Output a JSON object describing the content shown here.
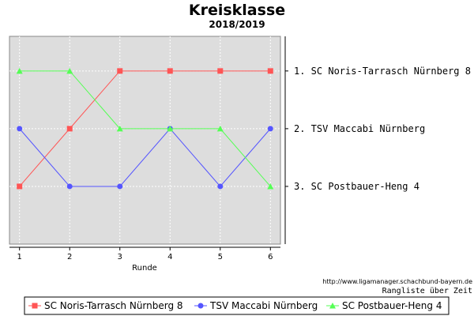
{
  "chart_data": {
    "type": "line",
    "title": "Kreisklasse",
    "subtitle": "2018/2019",
    "xlabel": "Runde",
    "ylabel": "",
    "x": [
      1,
      2,
      3,
      4,
      5,
      6
    ],
    "ylim": [
      4,
      0.4
    ],
    "grid": true,
    "plot_background": "#dddddd",
    "rank_labels": [
      "1. SC Noris-Tarrasch Nürnberg 8",
      "2. TSV Maccabi Nürnberg",
      "3. SC Postbauer-Heng 4"
    ],
    "series": [
      {
        "name": "SC Noris-Tarrasch Nürnberg 8",
        "values": [
          3,
          2,
          1,
          1,
          1,
          1
        ],
        "color": "#ff5555",
        "marker": "square"
      },
      {
        "name": "TSV Maccabi Nürnberg",
        "values": [
          2,
          3,
          3,
          2,
          3,
          2
        ],
        "color": "#5555ff",
        "marker": "circle"
      },
      {
        "name": "SC Postbauer-Heng 4",
        "values": [
          1,
          1,
          2,
          2,
          2,
          3
        ],
        "color": "#55ff55",
        "marker": "triangle"
      }
    ],
    "source_url": "http://www.ligamanager.schachbund-bayern.de",
    "caption": "Rangliste über Zeit",
    "legend_position": "bottom"
  }
}
